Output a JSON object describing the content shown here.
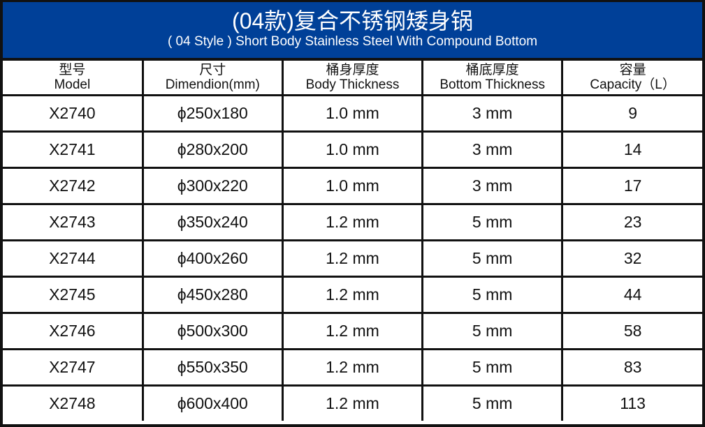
{
  "title": {
    "cn": "(04款)复合不锈钢矮身锅",
    "en": "( 04 Style ) Short Body Stainless Steel With Compound Bottom",
    "background_color": "#004098"
  },
  "headers": [
    {
      "cn": "型号",
      "en": "Model"
    },
    {
      "cn": "尺寸",
      "en": "Dimendion(mm)"
    },
    {
      "cn": "桶身厚度",
      "en": "Body Thickness"
    },
    {
      "cn": "桶底厚度",
      "en": "Bottom Thickness"
    },
    {
      "cn": "容量",
      "en": "Capacity（L）"
    }
  ],
  "rows": [
    [
      "X2740",
      "ϕ250x180",
      "1.0 mm",
      "3 mm",
      "9"
    ],
    [
      "X2741",
      "ϕ280x200",
      "1.0 mm",
      "3 mm",
      "14"
    ],
    [
      "X2742",
      "ϕ300x220",
      "1.0 mm",
      "3 mm",
      "17"
    ],
    [
      "X2743",
      "ϕ350x240",
      "1.2 mm",
      "5 mm",
      "23"
    ],
    [
      "X2744",
      "ϕ400x260",
      "1.2 mm",
      "5 mm",
      "32"
    ],
    [
      "X2745",
      "ϕ450x280",
      "1.2 mm",
      "5 mm",
      "44"
    ],
    [
      "X2746",
      "ϕ500x300",
      "1.2 mm",
      "5 mm",
      "58"
    ],
    [
      "X2747",
      "ϕ550x350",
      "1.2 mm",
      "5 mm",
      "83"
    ],
    [
      "X2748",
      "ϕ600x400",
      "1.2 mm",
      "5 mm",
      "113"
    ]
  ]
}
